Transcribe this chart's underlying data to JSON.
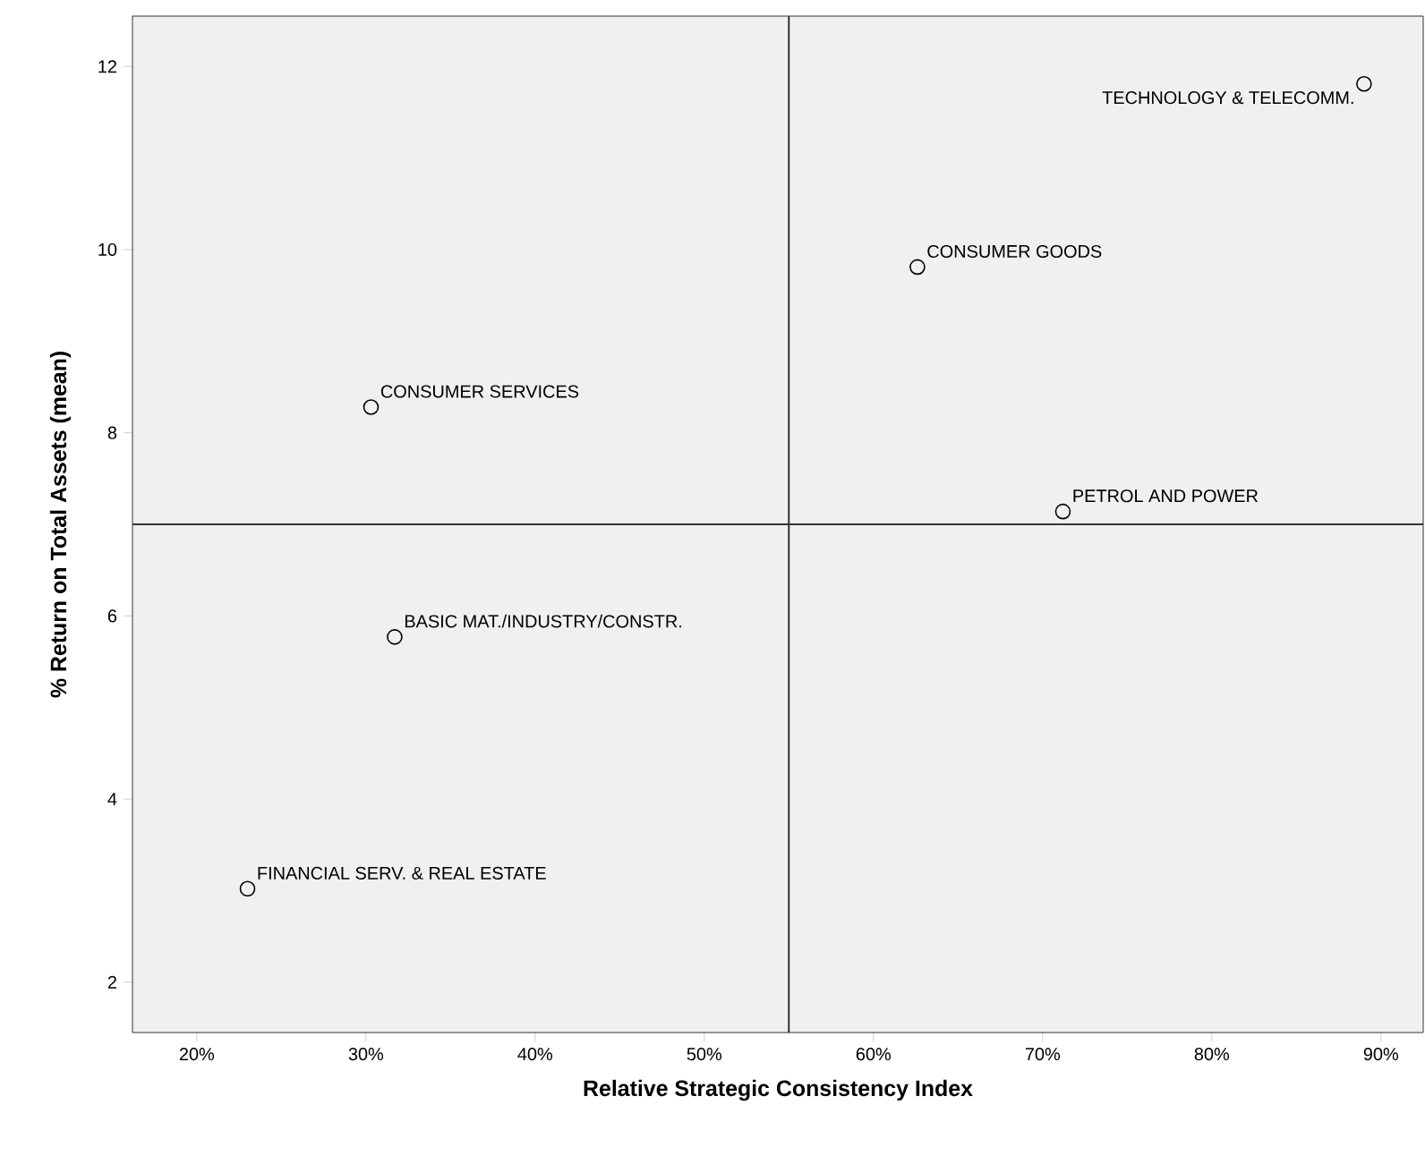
{
  "chart_data": {
    "type": "scatter",
    "xlabel": "Relative Strategic Consistency Index",
    "ylabel": "% Return on Total Assets (mean)",
    "xlim": [
      16.2,
      92.5
    ],
    "ylim": [
      1.45,
      12.55
    ],
    "xticks": [
      {
        "value": 20,
        "label": "20%"
      },
      {
        "value": 30,
        "label": "30%"
      },
      {
        "value": 40,
        "label": "40%"
      },
      {
        "value": 50,
        "label": "50%"
      },
      {
        "value": 60,
        "label": "60%"
      },
      {
        "value": 70,
        "label": "70%"
      },
      {
        "value": 80,
        "label": "80%"
      },
      {
        "value": 90,
        "label": "90%"
      }
    ],
    "yticks": [
      2,
      4,
      6,
      8,
      10,
      12
    ],
    "series": [
      {
        "color": "#000000",
        "x": [
          89.0,
          62.6,
          30.3,
          71.2,
          31.7,
          23.0
        ],
        "values": [
          11.81,
          9.81,
          8.28,
          7.14,
          5.77,
          3.02
        ]
      }
    ],
    "marker": "circle",
    "ref_lines": [
      {
        "axis": "x",
        "value": 55,
        "color": "#333333"
      },
      {
        "axis": "y",
        "value": 7,
        "color": "#333333"
      }
    ],
    "annotations": [
      {
        "text": "TECHNOLOGY & TELECOMM.",
        "x": 89.0,
        "y": 11.81
      },
      {
        "text": "CONSUMER GOODS",
        "x": 62.6,
        "y": 9.81
      },
      {
        "text": "CONSUMER SERVICES",
        "x": 30.3,
        "y": 8.28
      },
      {
        "text": "PETROL AND POWER",
        "x": 71.2,
        "y": 7.14
      },
      {
        "text": "BASIC MAT./INDUSTRY/CONSTR.",
        "x": 31.7,
        "y": 5.77
      },
      {
        "text": "FINANCIAL SERV. & REAL ESTATE",
        "x": 23.0,
        "y": 3.02
      }
    ]
  }
}
